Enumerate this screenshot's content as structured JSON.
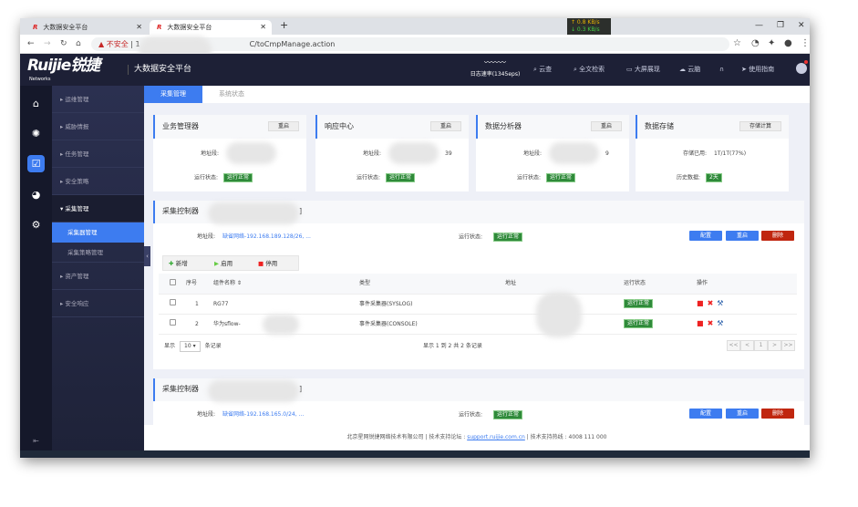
{
  "browser": {
    "tabs": [
      {
        "title": "大数据安全平台",
        "logo": "R"
      },
      {
        "title": "大数据安全平台",
        "logo": "R"
      }
    ],
    "new_tab": "+",
    "insecure": "不安全",
    "url_prefix": "1",
    "url_suffix": "C/toCmpManage.action",
    "net_up": "↑ 0.8 KB/s",
    "net_down": "↓ 0.3 KB/s"
  },
  "header": {
    "brand": "Ruijie锐捷",
    "brand_sub": "Networks",
    "title": "大数据安全平台",
    "log_rate": "日志速率(1345eps)",
    "nav": [
      "云查",
      "全文检索",
      "大屏展现",
      "云脑",
      "",
      "使用指南"
    ]
  },
  "sidebar": {
    "items": [
      "运维管理",
      "威胁情报",
      "任务管理",
      "安全策略",
      "采集管理",
      "采集器管理",
      "采集策略管理",
      "资产管理",
      "安全响应"
    ]
  },
  "tabs": [
    "采集管理",
    "系统状态"
  ],
  "cards": [
    {
      "title": "业务管理器",
      "button": "重启",
      "k1": "地址段:",
      "v1": "",
      "k2": "运行状态:",
      "status": "运行正常"
    },
    {
      "title": "响应中心",
      "button": "重启",
      "k1": "地址段:",
      "v1": "39",
      "k2": "运行状态:",
      "status": "运行正常"
    },
    {
      "title": "数据分析器",
      "button": "重启",
      "k1": "地址段:",
      "v1": "9",
      "k2": "运行状态:",
      "status": "运行正常"
    },
    {
      "title": "数据存储",
      "button": "存储计算",
      "k1": "存储已用:",
      "v1": "1T/1T(77%)",
      "k2": "历史数据:",
      "status": "2天"
    }
  ],
  "collectors": [
    {
      "title": "采集控制器",
      "bracket": "]",
      "addr_label": "地址段:",
      "addr": "缺省网络-192.168.189.128/26, ...",
      "status_label": "运行状态:",
      "status": "运行正常",
      "buttons": [
        "配置",
        "重启",
        "删除"
      ]
    },
    {
      "title": "采集控制器",
      "bracket": "]",
      "addr_label": "地址段:",
      "addr": "缺省网络-192.168.165.0/24, ...",
      "status_label": "运行状态:",
      "status": "运行正常",
      "buttons": [
        "配置",
        "重启",
        "删除"
      ]
    }
  ],
  "toolbar": [
    "新增",
    "启用",
    "停用"
  ],
  "table": {
    "headers": [
      "序号",
      "组件名称 ⇕",
      "类型",
      "地址",
      "运行状态",
      "操作"
    ],
    "rows": [
      {
        "no": "1",
        "name": "RG77",
        "type": "事件采集器(SYSLOG)",
        "addr": "9.169",
        "status": "运行正常"
      },
      {
        "no": "2",
        "name": "华为sflow-",
        "type": "事件采集器(CONSOLE)",
        "addr": "",
        "status": "运行正常"
      }
    ]
  },
  "paging": {
    "show": "显示",
    "size": "10",
    "records": "条记录",
    "summary": "显示 1 到 2 共 2 条记录",
    "pages": [
      "<<",
      "<",
      "1",
      ">",
      ">>"
    ]
  },
  "footer": {
    "company": "北京星网锐捷网络技术有限公司 | 技术支持论坛 : ",
    "link": "support.ruijie.com.cn",
    "hotline": " | 技术支持热线 : 4008 111 000"
  }
}
